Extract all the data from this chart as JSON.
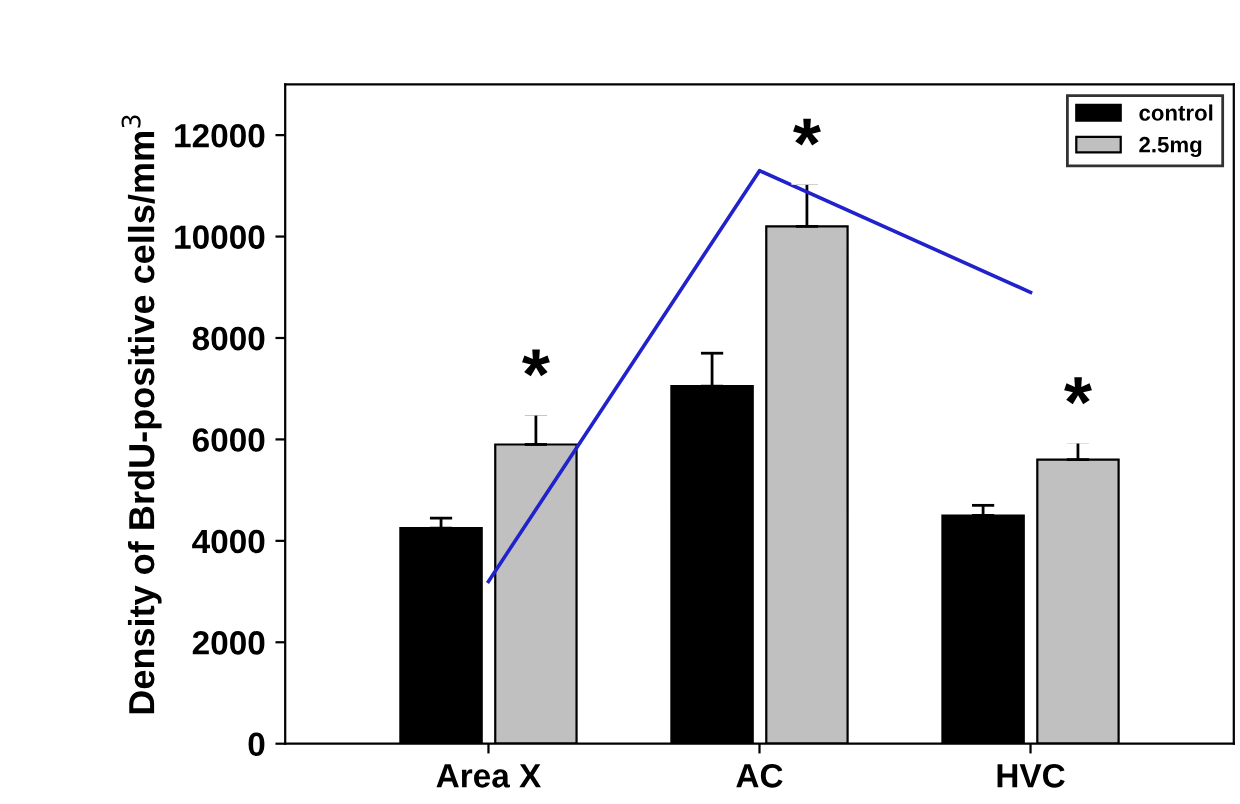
{
  "chart_data": {
    "type": "bar",
    "ylabel": "Density of BrdU-positive cells/mm$^{3}$",
    "categories": [
      "Area X",
      "AC",
      "HVC"
    ],
    "series": [
      {
        "name": "control",
        "color": "#000000",
        "values": [
          4250,
          7050,
          4500
        ],
        "errors": [
          200,
          650,
          200
        ]
      },
      {
        "name": "2.5mg",
        "color": "#c0c0c0",
        "values": [
          5900,
          10200,
          5600
        ],
        "errors": [
          600,
          850,
          350
        ]
      },
      {
        "type": "line",
        "color": "#2222cc",
        "values": [
          3200,
          11300,
          8900
        ]
      }
    ],
    "annotations": [
      "*",
      "*",
      "*"
    ],
    "ylim": [
      0,
      13000
    ],
    "yticks": [
      0,
      2000,
      4000,
      6000,
      8000,
      10000,
      12000
    ],
    "legend": "top right"
  }
}
